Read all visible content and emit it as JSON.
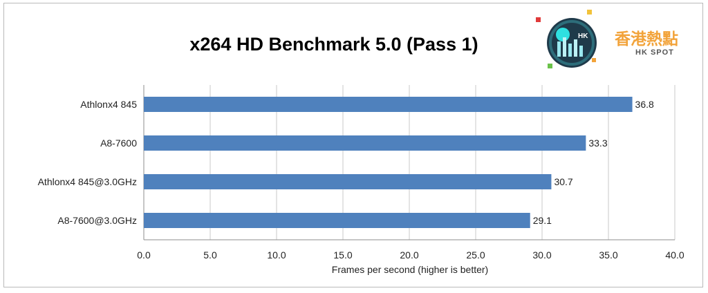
{
  "chart_data": {
    "type": "bar",
    "orientation": "horizontal",
    "title": "x264 HD Benchmark 5.0 (Pass 1)",
    "categories": [
      "Athlonx4 845",
      "A8-7600",
      "Athlonx4 845@3.0GHz",
      "A8-7600@3.0GHz"
    ],
    "values": [
      36.8,
      33.3,
      30.7,
      29.1
    ],
    "value_labels": [
      "36.8",
      "33.3",
      "30.7",
      "29.1"
    ],
    "xlabel": "Frames per second (higher is better)",
    "ylabel": "",
    "xlim": [
      0,
      40
    ],
    "ticks": [
      "0.0",
      "5.0",
      "10.0",
      "15.0",
      "20.0",
      "25.0",
      "30.0",
      "35.0",
      "40.0"
    ],
    "grid": true,
    "bar_color": "#4f81bd"
  },
  "logo": {
    "name_cjk": "香港熱點",
    "name_en": "HK SPOT",
    "badge_text": "HK",
    "accent_color": "#f2a33a"
  }
}
